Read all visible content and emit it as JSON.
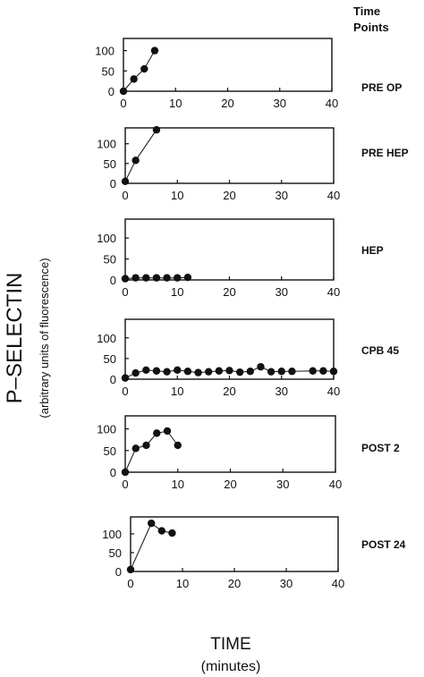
{
  "legend_header": {
    "line1": "Time",
    "line2": "Points"
  },
  "y_axis": {
    "label": "P–SELECTIN",
    "sublabel": "(arbitrary units of fluorescence)"
  },
  "x_axis": {
    "label": "TIME",
    "sublabel": "(minutes)"
  },
  "chart_data": [
    {
      "type": "line",
      "time_point": "PRE OP",
      "xlim": [
        0,
        40
      ],
      "ylim": [
        0,
        130
      ],
      "xticks": [
        0,
        10,
        20,
        30,
        40
      ],
      "yticks": [
        0,
        50,
        100
      ],
      "x": [
        0,
        2,
        4,
        6
      ],
      "y": [
        0,
        30,
        55,
        100
      ]
    },
    {
      "type": "line",
      "time_point": "PRE HEP",
      "xlim": [
        0,
        40
      ],
      "ylim": [
        0,
        140
      ],
      "xticks": [
        0,
        10,
        20,
        30,
        40
      ],
      "yticks": [
        0,
        50,
        100
      ],
      "x": [
        0,
        2,
        6
      ],
      "y": [
        5,
        58,
        135
      ]
    },
    {
      "type": "line",
      "time_point": "HEP",
      "xlim": [
        0,
        40
      ],
      "ylim": [
        0,
        145
      ],
      "xticks": [
        0,
        10,
        20,
        30,
        40
      ],
      "yticks": [
        0,
        50,
        100
      ],
      "x": [
        0,
        2,
        4,
        6,
        8,
        10,
        12
      ],
      "y": [
        3,
        5,
        5,
        5,
        5,
        5,
        6
      ]
    },
    {
      "type": "line",
      "time_point": "CPB 45",
      "xlim": [
        0,
        40
      ],
      "ylim": [
        0,
        145
      ],
      "xticks": [
        0,
        10,
        20,
        30,
        40
      ],
      "yticks": [
        0,
        50,
        100
      ],
      "x": [
        0,
        2,
        4,
        6,
        8,
        10,
        12,
        14,
        16,
        18,
        20,
        22,
        24,
        26,
        28,
        30,
        32,
        36,
        38,
        40
      ],
      "y": [
        3,
        15,
        22,
        20,
        18,
        22,
        19,
        16,
        18,
        20,
        21,
        17,
        19,
        30,
        18,
        19,
        19,
        20,
        20,
        19
      ]
    },
    {
      "type": "line",
      "time_point": "POST 2",
      "xlim": [
        0,
        40
      ],
      "ylim": [
        0,
        130
      ],
      "xticks": [
        0,
        10,
        20,
        30,
        40
      ],
      "yticks": [
        0,
        50,
        100
      ],
      "x": [
        0,
        2,
        4,
        6,
        8,
        10
      ],
      "y": [
        0,
        55,
        62,
        90,
        95,
        62
      ]
    },
    {
      "type": "line",
      "time_point": "POST 24",
      "xlim": [
        0,
        40
      ],
      "ylim": [
        0,
        145
      ],
      "xticks": [
        0,
        10,
        20,
        30,
        40
      ],
      "yticks": [
        0,
        50,
        100
      ],
      "x": [
        0,
        4,
        6,
        8
      ],
      "y": [
        5,
        128,
        108,
        102
      ]
    }
  ]
}
